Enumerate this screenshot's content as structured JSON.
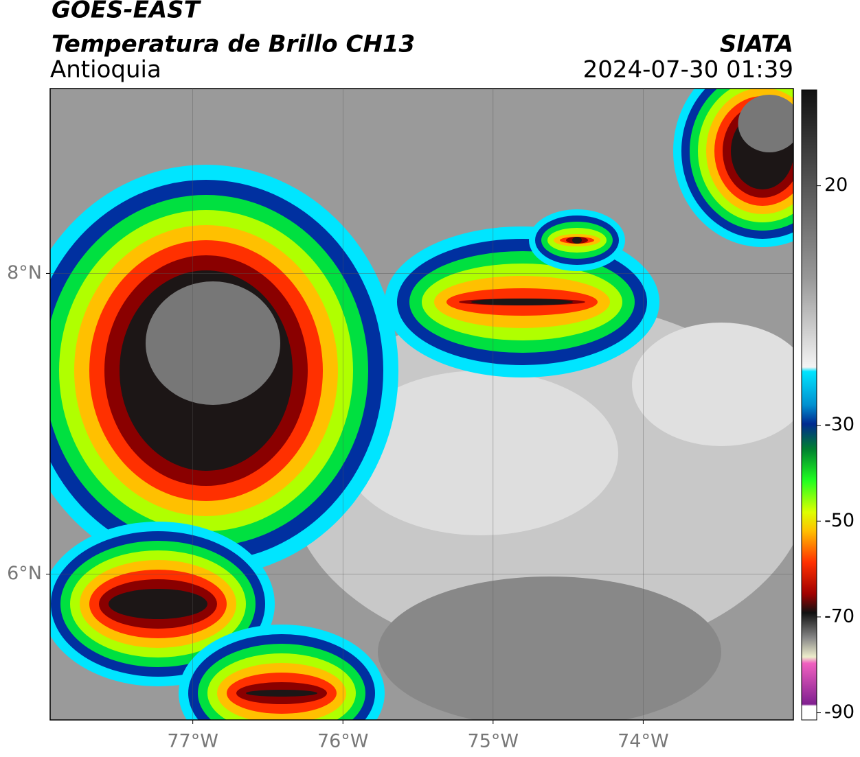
{
  "header": {
    "title": "GOES-EAST",
    "subtitle": "Temperatura de Brillo CH13",
    "region": "Antioquia",
    "source": "SIATA",
    "datetime": "2024-07-30 01:39"
  },
  "map": {
    "lon_range": [
      -77.95,
      -73.0
    ],
    "lat_range": [
      5.03,
      9.23
    ],
    "lon_ticks": [
      {
        "value": -77,
        "label": "77°W"
      },
      {
        "value": -76,
        "label": "76°W"
      },
      {
        "value": -75,
        "label": "75°W"
      },
      {
        "value": -74,
        "label": "74°W"
      }
    ],
    "lat_ticks": [
      {
        "value": 8,
        "label": "8°N"
      },
      {
        "value": 6,
        "label": "6°N"
      }
    ]
  },
  "colorbar": {
    "range": [
      -91.5,
      40
    ],
    "ticks": [
      20,
      -30,
      -50,
      -70,
      -90
    ]
  }
}
